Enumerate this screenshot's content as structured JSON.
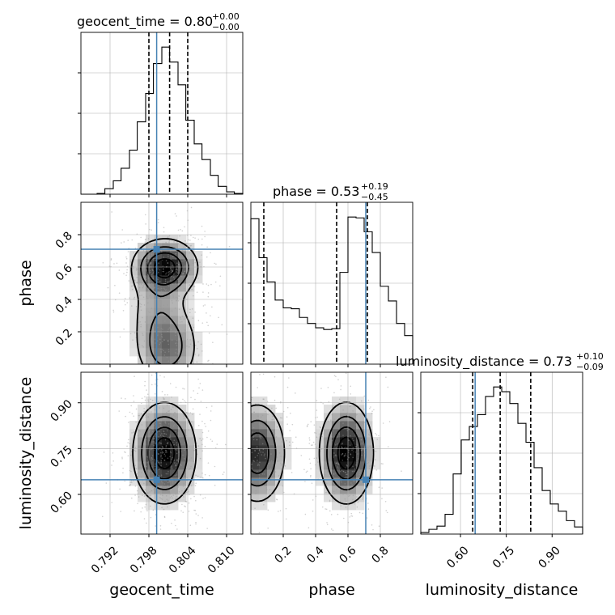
{
  "chart_data": {
    "type": "corner",
    "parameters": [
      {
        "name": "geocent_time",
        "range": [
          0.7875,
          0.8125
        ],
        "ticks": [
          0.792,
          0.798,
          0.804,
          0.81
        ],
        "tick_labels": [
          "0.792",
          "0.798",
          "0.804",
          "0.810"
        ],
        "truth": 0.7992,
        "quantiles": [
          0.798,
          0.8012,
          0.804
        ]
      },
      {
        "name": "phase",
        "range": [
          0.0,
          1.0
        ],
        "ticks": [
          0.2,
          0.4,
          0.6,
          0.8
        ],
        "tick_labels": [
          "0.2",
          "0.4",
          "0.6",
          "0.8"
        ],
        "truth": 0.71,
        "quantiles": [
          0.08,
          0.53,
          0.72
        ]
      },
      {
        "name": "luminosity_distance",
        "range": [
          0.47,
          1.0
        ],
        "ticks": [
          0.6,
          0.75,
          0.9
        ],
        "tick_labels": [
          "0.60",
          "0.75",
          "0.90"
        ],
        "truth": 0.648,
        "quantiles": [
          0.64,
          0.73,
          0.83
        ]
      }
    ],
    "titles": [
      {
        "base": "geocent_time = 0.80",
        "sup": "+0.00",
        "sub": "−0.00"
      },
      {
        "base": "phase = 0.53",
        "sup": "+0.19",
        "sub": "−0.45"
      },
      {
        "base": "luminosity_distance = 0.73",
        "sup": "+0.10",
        "sub": "−0.09"
      }
    ],
    "histograms": [
      {
        "parameter": "geocent_time",
        "bin_edges": [
          0.7875,
          0.7887,
          0.79,
          0.7912,
          0.7925,
          0.7937,
          0.795,
          0.7962,
          0.7975,
          0.7987,
          0.8,
          0.8012,
          0.8025,
          0.8037,
          0.805,
          0.8062,
          0.8075,
          0.8087,
          0.81,
          0.8112,
          0.8125
        ],
        "counts": [
          0,
          0,
          1,
          7,
          17,
          33,
          56,
          92,
          128,
          166,
          187,
          168,
          139,
          94,
          64,
          44,
          24,
          10,
          3,
          1
        ]
      },
      {
        "parameter": "phase",
        "bin_edges": [
          0.0,
          0.05,
          0.1,
          0.15,
          0.2,
          0.25,
          0.3,
          0.35,
          0.4,
          0.45,
          0.5,
          0.55,
          0.6,
          0.65,
          0.7,
          0.75,
          0.8,
          0.85,
          0.9,
          0.95,
          1.0
        ],
        "counts": [
          168,
          123,
          95,
          74,
          65,
          64,
          54,
          47,
          42,
          40,
          41,
          106,
          170,
          169,
          153,
          129,
          90,
          73,
          47,
          33
        ]
      },
      {
        "parameter": "luminosity_distance",
        "bin_edges": [
          0.47,
          0.4965,
          0.523,
          0.5495,
          0.576,
          0.6025,
          0.629,
          0.6555,
          0.682,
          0.7085,
          0.735,
          0.7615,
          0.788,
          0.8145,
          0.841,
          0.8675,
          0.894,
          0.9205,
          0.947,
          0.9735,
          1.0
        ],
        "counts": [
          2,
          6,
          10,
          25,
          76,
          119,
          136,
          151,
          174,
          186,
          180,
          165,
          140,
          116,
          84,
          55,
          38,
          29,
          17,
          9
        ]
      }
    ],
    "density_modes": [
      {
        "x": "geocent_time",
        "y": "phase",
        "modes": [
          {
            "x": 0.8005,
            "y": 0.6,
            "sx": 0.0026,
            "sy": 0.09,
            "weight": 0.55
          },
          {
            "x": 0.8008,
            "y": 0.1,
            "sx": 0.0026,
            "sy": 0.13,
            "weight": 0.3
          },
          {
            "x": 0.7995,
            "y": 0.35,
            "sx": 0.0026,
            "sy": 0.15,
            "weight": 0.15
          }
        ]
      },
      {
        "x": "geocent_time",
        "y": "luminosity_distance",
        "modes": [
          {
            "x": 0.8004,
            "y": 0.735,
            "sx": 0.0025,
            "sy": 0.085,
            "weight": 1.0
          }
        ]
      },
      {
        "x": "phase",
        "y": "luminosity_distance",
        "modes": [
          {
            "x": 0.59,
            "y": 0.735,
            "sx": 0.085,
            "sy": 0.085,
            "weight": 0.55
          },
          {
            "x": 0.04,
            "y": 0.735,
            "sx": 0.09,
            "sy": 0.085,
            "weight": 0.45
          }
        ]
      }
    ],
    "truth_color": "#4682b4",
    "grid": true,
    "legend": "none"
  }
}
